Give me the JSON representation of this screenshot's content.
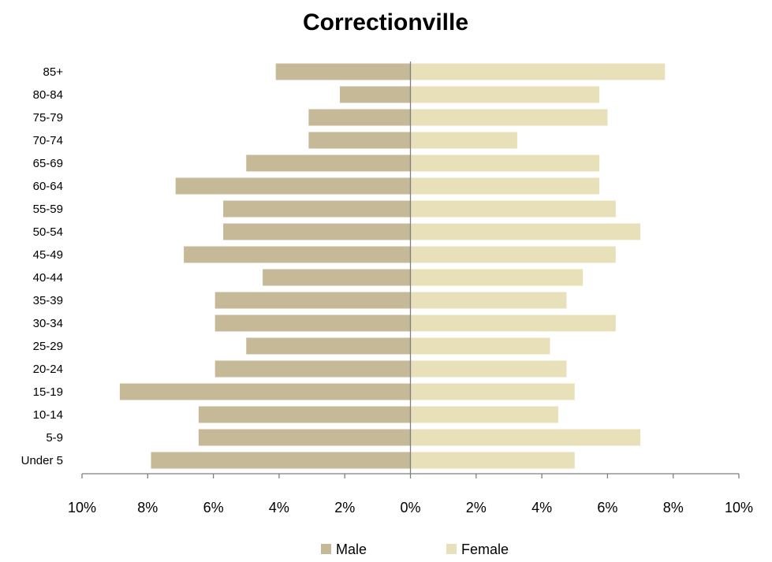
{
  "chart_data": {
    "type": "bar",
    "orientation": "horizontal-population-pyramid",
    "title": "Correctionville",
    "categories": [
      "Under 5",
      "5-9",
      "10-14",
      "15-19",
      "20-24",
      "25-29",
      "30-34",
      "35-39",
      "40-44",
      "45-49",
      "50-54",
      "55-59",
      "60-64",
      "65-69",
      "70-74",
      "75-79",
      "80-84",
      "85+"
    ],
    "series": [
      {
        "name": "Male",
        "color": "#c5b998",
        "values": [
          7.9,
          6.45,
          6.45,
          8.85,
          5.95,
          5.0,
          5.95,
          5.95,
          4.5,
          6.9,
          5.7,
          5.7,
          7.15,
          5.0,
          3.1,
          3.1,
          2.15,
          4.1
        ]
      },
      {
        "name": "Female",
        "color": "#e8e0b8",
        "values": [
          5.0,
          7.0,
          4.5,
          5.0,
          4.75,
          4.25,
          6.25,
          4.75,
          5.25,
          6.25,
          7.0,
          6.25,
          5.75,
          5.75,
          3.25,
          6.0,
          5.75,
          7.75
        ]
      }
    ],
    "x_ticks": [
      "10%",
      "8%",
      "6%",
      "4%",
      "2%",
      "0%",
      "2%",
      "4%",
      "6%",
      "8%",
      "10%"
    ],
    "xlim": [
      -10,
      10
    ],
    "legend": "bottom",
    "grid": false
  }
}
